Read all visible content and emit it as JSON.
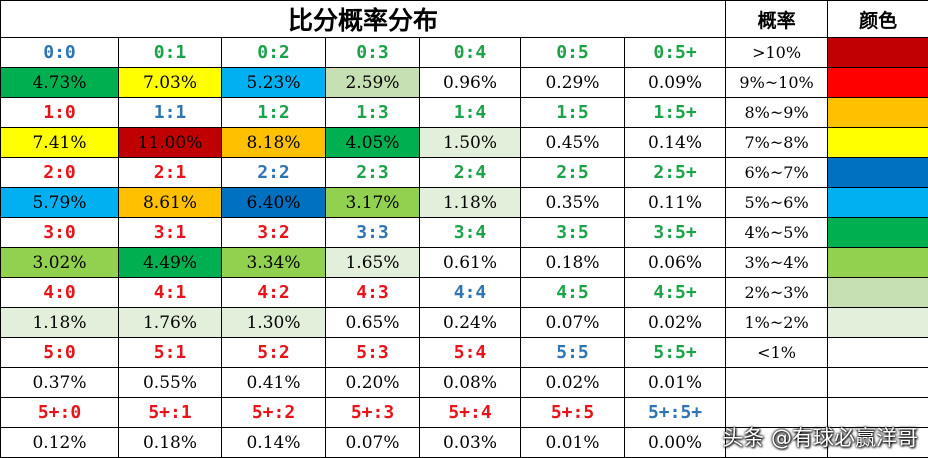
{
  "title": "比分概率分布",
  "legend_header": {
    "probability": "概率",
    "color": "颜色"
  },
  "score_colors": {
    "draw": "#2E75B6",
    "home": "#E8141B",
    "away": "#1CA34A"
  },
  "legend": [
    {
      "range": ">10%",
      "color": "#C00000"
    },
    {
      "range": "9%~10%",
      "color": "#FF0000"
    },
    {
      "range": "8%~9%",
      "color": "#FFC000"
    },
    {
      "range": "7%~8%",
      "color": "#FFFF00"
    },
    {
      "range": "6%~7%",
      "color": "#0070C0"
    },
    {
      "range": "5%~6%",
      "color": "#00B0F0"
    },
    {
      "range": "4%~5%",
      "color": "#00B050"
    },
    {
      "range": "3%~4%",
      "color": "#92D050"
    },
    {
      "range": "2%~3%",
      "color": "#C6E0B4"
    },
    {
      "range": "1%~2%",
      "color": "#E2EFDA"
    },
    {
      "range": "<1%",
      "color": "#FFFFFF"
    },
    {
      "range": "",
      "color": "#FFFFFF"
    },
    {
      "range": "",
      "color": "#FFFFFF"
    },
    {
      "range": "",
      "color": "#FFFFFF"
    }
  ],
  "rows": [
    {
      "cells": [
        {
          "score": "0:0",
          "type": "draw",
          "pct": "4.73%",
          "bg": "#00B050"
        },
        {
          "score": "0:1",
          "type": "away",
          "pct": "7.03%",
          "bg": "#FFFF00"
        },
        {
          "score": "0:2",
          "type": "away",
          "pct": "5.23%",
          "bg": "#00B0F0"
        },
        {
          "score": "0:3",
          "type": "away",
          "pct": "2.59%",
          "bg": "#C6E0B4"
        },
        {
          "score": "0:4",
          "type": "away",
          "pct": "0.96%",
          "bg": "#FFFFFF"
        },
        {
          "score": "0:5",
          "type": "away",
          "pct": "0.29%",
          "bg": "#FFFFFF"
        },
        {
          "score": "0:5+",
          "type": "away",
          "pct": "0.09%",
          "bg": "#FFFFFF"
        }
      ]
    },
    {
      "cells": [
        {
          "score": "1:0",
          "type": "home",
          "pct": "7.41%",
          "bg": "#FFFF00"
        },
        {
          "score": "1:1",
          "type": "draw",
          "pct": "11.00%",
          "bg": "#C00000"
        },
        {
          "score": "1:2",
          "type": "away",
          "pct": "8.18%",
          "bg": "#FFC000"
        },
        {
          "score": "1:3",
          "type": "away",
          "pct": "4.05%",
          "bg": "#00B050"
        },
        {
          "score": "1:4",
          "type": "away",
          "pct": "1.50%",
          "bg": "#E2EFDA"
        },
        {
          "score": "1:5",
          "type": "away",
          "pct": "0.45%",
          "bg": "#FFFFFF"
        },
        {
          "score": "1:5+",
          "type": "away",
          "pct": "0.14%",
          "bg": "#FFFFFF"
        }
      ]
    },
    {
      "cells": [
        {
          "score": "2:0",
          "type": "home",
          "pct": "5.79%",
          "bg": "#00B0F0"
        },
        {
          "score": "2:1",
          "type": "home",
          "pct": "8.61%",
          "bg": "#FFC000"
        },
        {
          "score": "2:2",
          "type": "draw",
          "pct": "6.40%",
          "bg": "#0070C0"
        },
        {
          "score": "2:3",
          "type": "away",
          "pct": "3.17%",
          "bg": "#92D050"
        },
        {
          "score": "2:4",
          "type": "away",
          "pct": "1.18%",
          "bg": "#E2EFDA"
        },
        {
          "score": "2:5",
          "type": "away",
          "pct": "0.35%",
          "bg": "#FFFFFF"
        },
        {
          "score": "2:5+",
          "type": "away",
          "pct": "0.11%",
          "bg": "#FFFFFF"
        }
      ]
    },
    {
      "cells": [
        {
          "score": "3:0",
          "type": "home",
          "pct": "3.02%",
          "bg": "#92D050"
        },
        {
          "score": "3:1",
          "type": "home",
          "pct": "4.49%",
          "bg": "#00B050"
        },
        {
          "score": "3:2",
          "type": "home",
          "pct": "3.34%",
          "bg": "#92D050"
        },
        {
          "score": "3:3",
          "type": "draw",
          "pct": "1.65%",
          "bg": "#E2EFDA"
        },
        {
          "score": "3:4",
          "type": "away",
          "pct": "0.61%",
          "bg": "#FFFFFF"
        },
        {
          "score": "3:5",
          "type": "away",
          "pct": "0.18%",
          "bg": "#FFFFFF"
        },
        {
          "score": "3:5+",
          "type": "away",
          "pct": "0.06%",
          "bg": "#FFFFFF"
        }
      ]
    },
    {
      "cells": [
        {
          "score": "4:0",
          "type": "home",
          "pct": "1.18%",
          "bg": "#E2EFDA"
        },
        {
          "score": "4:1",
          "type": "home",
          "pct": "1.76%",
          "bg": "#E2EFDA"
        },
        {
          "score": "4:2",
          "type": "home",
          "pct": "1.30%",
          "bg": "#E2EFDA"
        },
        {
          "score": "4:3",
          "type": "home",
          "pct": "0.65%",
          "bg": "#FFFFFF"
        },
        {
          "score": "4:4",
          "type": "draw",
          "pct": "0.24%",
          "bg": "#FFFFFF"
        },
        {
          "score": "4:5",
          "type": "away",
          "pct": "0.07%",
          "bg": "#FFFFFF"
        },
        {
          "score": "4:5+",
          "type": "away",
          "pct": "0.02%",
          "bg": "#FFFFFF"
        }
      ]
    },
    {
      "cells": [
        {
          "score": "5:0",
          "type": "home",
          "pct": "0.37%",
          "bg": "#FFFFFF"
        },
        {
          "score": "5:1",
          "type": "home",
          "pct": "0.55%",
          "bg": "#FFFFFF"
        },
        {
          "score": "5:2",
          "type": "home",
          "pct": "0.41%",
          "bg": "#FFFFFF"
        },
        {
          "score": "5:3",
          "type": "home",
          "pct": "0.20%",
          "bg": "#FFFFFF"
        },
        {
          "score": "5:4",
          "type": "home",
          "pct": "0.08%",
          "bg": "#FFFFFF"
        },
        {
          "score": "5:5",
          "type": "draw",
          "pct": "0.02%",
          "bg": "#FFFFFF"
        },
        {
          "score": "5:5+",
          "type": "away",
          "pct": "0.01%",
          "bg": "#FFFFFF"
        }
      ]
    },
    {
      "cells": [
        {
          "score": "5+:0",
          "type": "home",
          "pct": "0.12%",
          "bg": "#FFFFFF"
        },
        {
          "score": "5+:1",
          "type": "home",
          "pct": "0.18%",
          "bg": "#FFFFFF"
        },
        {
          "score": "5+:2",
          "type": "home",
          "pct": "0.14%",
          "bg": "#FFFFFF"
        },
        {
          "score": "5+:3",
          "type": "home",
          "pct": "0.07%",
          "bg": "#FFFFFF"
        },
        {
          "score": "5+:4",
          "type": "home",
          "pct": "0.03%",
          "bg": "#FFFFFF"
        },
        {
          "score": "5+:5",
          "type": "home",
          "pct": "0.01%",
          "bg": "#FFFFFF"
        },
        {
          "score": "5+:5+",
          "type": "draw",
          "pct": "0.00%",
          "bg": "#FFFFFF"
        }
      ]
    }
  ],
  "watermark": "头条 @有球必赢洋哥"
}
